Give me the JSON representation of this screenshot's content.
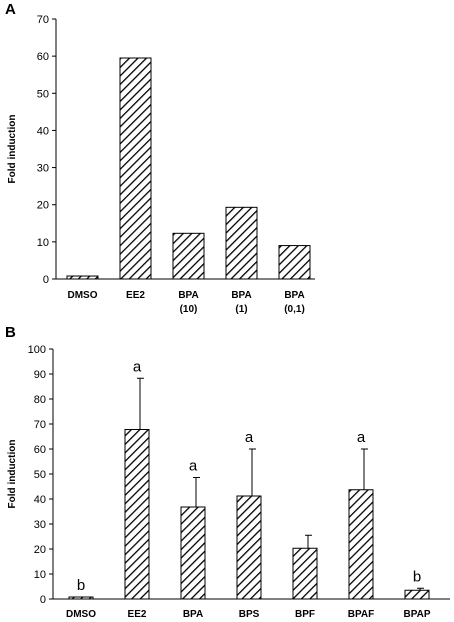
{
  "chart_data": [
    {
      "panel_label": "A",
      "type": "bar",
      "ylabel": "Fold induction",
      "xlabel": "",
      "ylim": [
        0,
        70
      ],
      "yticks": [
        0,
        10,
        20,
        30,
        40,
        50,
        60,
        70
      ],
      "fill_pattern": "diagonal-hatch",
      "categories": [
        {
          "lines": [
            "DMSO"
          ]
        },
        {
          "lines": [
            "EE2"
          ]
        },
        {
          "lines": [
            "BPA",
            "(10)"
          ]
        },
        {
          "lines": [
            "BPA",
            "(1)"
          ]
        },
        {
          "lines": [
            "BPA",
            "(0,1)"
          ]
        }
      ],
      "values": [
        0.8,
        59.5,
        12.3,
        19.3,
        9.0
      ]
    },
    {
      "panel_label": "B",
      "type": "bar",
      "ylabel": "Fold induction",
      "xlabel": "",
      "ylim": [
        0,
        100
      ],
      "yticks": [
        0,
        10,
        20,
        30,
        40,
        50,
        60,
        70,
        80,
        90,
        100
      ],
      "fill_pattern": "diagonal-hatch",
      "categories": [
        {
          "lines": [
            "DMSO"
          ]
        },
        {
          "lines": [
            "EE2"
          ]
        },
        {
          "lines": [
            "BPA"
          ]
        },
        {
          "lines": [
            "BPS"
          ]
        },
        {
          "lines": [
            "BPF"
          ]
        },
        {
          "lines": [
            "BPAF"
          ]
        },
        {
          "lines": [
            "BPAP"
          ]
        }
      ],
      "values": [
        0.8,
        67.8,
        36.8,
        41.2,
        20.3,
        43.7,
        3.5
      ],
      "error_upper": [
        null,
        88.3,
        48.6,
        60.0,
        25.5,
        60.0,
        4.3
      ],
      "significance": [
        "b",
        "a",
        "a",
        "a",
        "",
        "a",
        "b"
      ]
    }
  ]
}
